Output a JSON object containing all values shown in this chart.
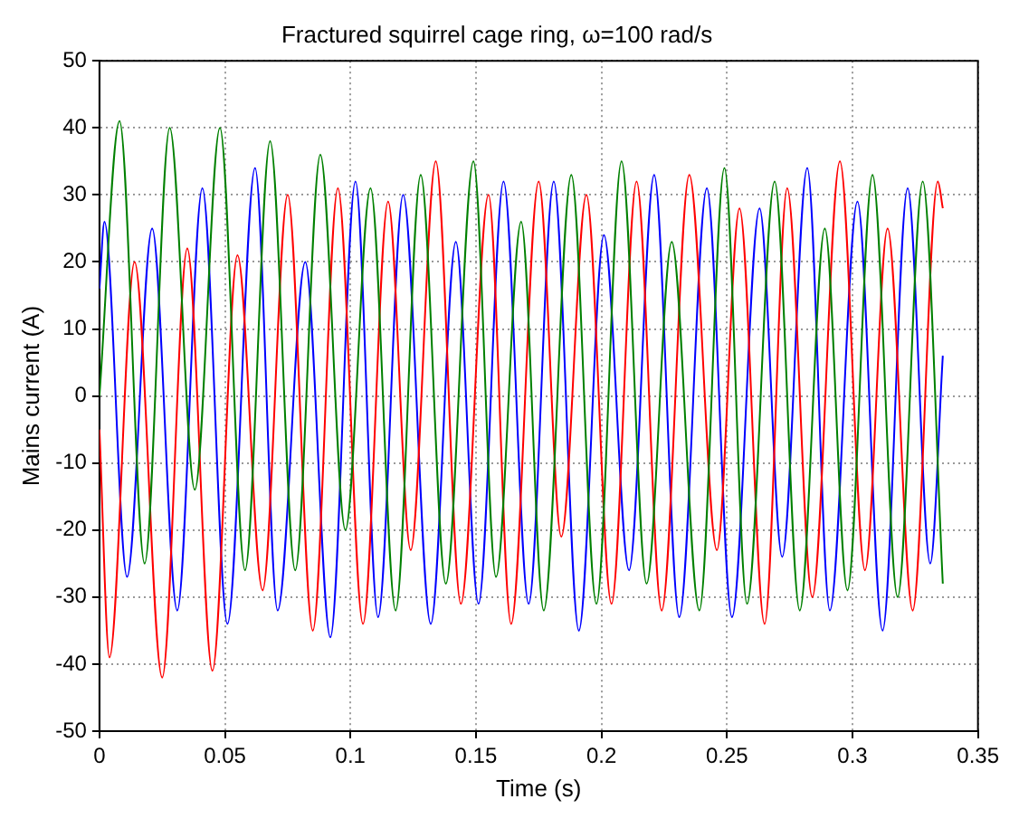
{
  "chart_data": {
    "type": "line",
    "title": "Fractured squirrel cage ring, ω=100 rad/s",
    "xlabel": "Time (s)",
    "ylabel": "Mains current (A)",
    "xlim": [
      0,
      0.35
    ],
    "xticks": [
      0,
      0.05,
      0.1,
      0.15,
      0.2,
      0.25,
      0.3,
      0.35
    ],
    "ylim": [
      -50,
      50
    ],
    "yticks": [
      -50,
      -40,
      -30,
      -20,
      -10,
      0,
      10,
      20,
      30,
      40,
      50
    ],
    "grid": true,
    "legend": false,
    "marker": "none",
    "line_style": "solid",
    "series": [
      {
        "color": "#008000",
        "x": [
          0,
          0.008,
          0.018,
          0.028,
          0.038,
          0.048,
          0.058,
          0.068,
          0.078,
          0.088,
          0.098,
          0.108,
          0.118,
          0.128,
          0.138,
          0.149,
          0.158,
          0.168,
          0.177,
          0.188,
          0.198,
          0.208,
          0.218,
          0.228,
          0.239,
          0.249,
          0.258,
          0.269,
          0.279,
          0.289,
          0.298,
          0.308,
          0.318,
          0.328,
          0.336
        ],
        "values": [
          0,
          41,
          -25,
          40,
          -14,
          40,
          -26,
          38,
          -26,
          36,
          -20,
          31,
          -32,
          33,
          -28,
          35,
          -27,
          26,
          -32,
          33,
          -31,
          35,
          -28,
          23,
          -32,
          34,
          -31,
          32,
          -32,
          25,
          -29,
          33,
          -30,
          32,
          -28
        ]
      },
      {
        "color": "#ff0000",
        "x": [
          0,
          0.004,
          0.014,
          0.025,
          0.035,
          0.045,
          0.055,
          0.065,
          0.075,
          0.085,
          0.095,
          0.105,
          0.115,
          0.124,
          0.134,
          0.144,
          0.155,
          0.164,
          0.175,
          0.184,
          0.194,
          0.204,
          0.214,
          0.224,
          0.235,
          0.246,
          0.255,
          0.265,
          0.274,
          0.284,
          0.295,
          0.305,
          0.314,
          0.324,
          0.334,
          0.336
        ],
        "values": [
          -5,
          -39,
          20,
          -42,
          22,
          -41,
          21,
          -29,
          30,
          -35,
          31,
          -34,
          29,
          -23,
          35,
          -31,
          30,
          -34,
          32,
          -21,
          30,
          -31,
          32,
          -32,
          33,
          -23,
          28,
          -34,
          31,
          -30,
          35,
          -26,
          25,
          -32,
          32,
          28
        ]
      },
      {
        "color": "#0000ff",
        "x": [
          0,
          0.002,
          0.011,
          0.021,
          0.031,
          0.041,
          0.051,
          0.062,
          0.071,
          0.082,
          0.092,
          0.102,
          0.111,
          0.121,
          0.132,
          0.142,
          0.151,
          0.161,
          0.171,
          0.181,
          0.191,
          0.201,
          0.211,
          0.221,
          0.231,
          0.242,
          0.252,
          0.263,
          0.272,
          0.282,
          0.291,
          0.302,
          0.312,
          0.322,
          0.331,
          0.336
        ],
        "values": [
          16,
          26,
          -27,
          25,
          -32,
          31,
          -34,
          34,
          -32,
          20,
          -36,
          32,
          -33,
          30,
          -34,
          23,
          -31,
          32,
          -31,
          32,
          -35,
          24,
          -26,
          33,
          -33,
          31,
          -33,
          28,
          -24,
          34,
          -32,
          29,
          -35,
          31,
          -25,
          6
        ]
      }
    ]
  }
}
